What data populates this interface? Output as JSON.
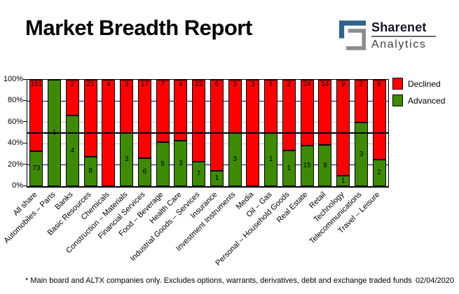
{
  "header": {
    "title": "Market Breadth Report",
    "logo": {
      "line1": "Sharenet",
      "line2": "Analytics",
      "icon_blue": "#31618c",
      "icon_gray": "#8c8c8c"
    }
  },
  "chart_data": {
    "type": "bar",
    "subtype": "stacked-100-percent",
    "title": "Market Breadth Report",
    "categories": [
      "All share",
      "Automobiles – Parts",
      "Banks",
      "Basic Resources",
      "Chemicals",
      "Construction – Materials",
      "Financial Services",
      "Food – Beverage",
      "Health Care",
      "Industrial Goods – Services",
      "Insurance",
      "Investment Instruments",
      "Media",
      "Oil – Gas",
      "Personal – Household Goods",
      "Real Estate",
      "Retail",
      "Technology",
      "Telecommunications",
      "Travel – Leisure"
    ],
    "series": [
      {
        "name": "Declined",
        "color": "#ff0000",
        "values": [
          151,
          0,
          2,
          21,
          4,
          3,
          17,
          7,
          4,
          23,
          6,
          3,
          3,
          1,
          2,
          24,
          14,
          9,
          2,
          6
        ]
      },
      {
        "name": "Advanced",
        "color": "#3e8a06",
        "values": [
          73,
          1,
          4,
          8,
          0,
          3,
          6,
          5,
          3,
          7,
          1,
          3,
          0,
          1,
          1,
          15,
          9,
          1,
          3,
          2
        ]
      }
    ],
    "ylim": [
      0,
      100
    ],
    "y_ticks": [
      {
        "label": "0%",
        "percent": 0
      },
      {
        "label": "20%",
        "percent": 20
      },
      {
        "label": "40%",
        "percent": 40
      },
      {
        "label": "60%",
        "percent": 60
      },
      {
        "label": "80%",
        "percent": 80
      },
      {
        "label": "100%",
        "percent": 100
      }
    ],
    "gridlines": [
      {
        "percent": 20,
        "color": "#000080",
        "front": false
      },
      {
        "percent": 40,
        "color": "#c0c0c0",
        "front": false
      },
      {
        "percent": 50,
        "color": "#000000",
        "front": true
      },
      {
        "percent": 60,
        "color": "#c0c0c0",
        "front": false
      },
      {
        "percent": 80,
        "color": "#000080",
        "front": false
      }
    ],
    "legend_position": "top-right"
  },
  "footer": {
    "note": "* Main board and ALTX companies only. Excludes options, warrants, derivatives, debt and exchange traded funds",
    "date": "02/04/2020"
  }
}
